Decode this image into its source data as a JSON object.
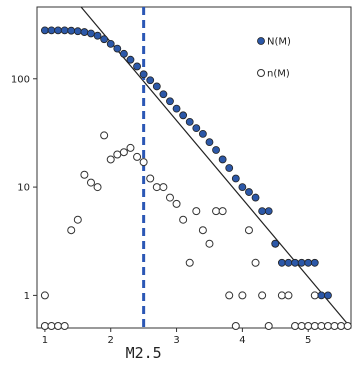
{
  "chart_data": {
    "type": "scatter",
    "title": "",
    "xlabel": "",
    "ylabel": "",
    "xlim": [
      0.88,
      5.65
    ],
    "ylim": [
      0.5,
      460
    ],
    "y_scale": "log",
    "x_ticks": [
      "1",
      "2",
      "3",
      "4",
      "5"
    ],
    "y_ticks": [
      "1",
      "10",
      "100"
    ],
    "legend_position": "top-right",
    "grid": false,
    "colors": {
      "cumulative": "#2c58a8",
      "incremental": "#ffffff",
      "line": "#222222",
      "marker_line": "#2b57b5"
    },
    "series": [
      {
        "name": "N(M)",
        "marker": "filled-circle",
        "points": [
          [
            1.0,
            280
          ],
          [
            1.1,
            280
          ],
          [
            1.2,
            280
          ],
          [
            1.3,
            280
          ],
          [
            1.4,
            278
          ],
          [
            1.5,
            275
          ],
          [
            1.6,
            270
          ],
          [
            1.7,
            262
          ],
          [
            1.8,
            250
          ],
          [
            1.9,
            232
          ],
          [
            2.0,
            210
          ],
          [
            2.1,
            190
          ],
          [
            2.2,
            170
          ],
          [
            2.3,
            150
          ],
          [
            2.4,
            130
          ],
          [
            2.5,
            110
          ],
          [
            2.6,
            97
          ],
          [
            2.7,
            85
          ],
          [
            2.8,
            72
          ],
          [
            2.9,
            62
          ],
          [
            3.0,
            53
          ],
          [
            3.1,
            46
          ],
          [
            3.2,
            40
          ],
          [
            3.3,
            35
          ],
          [
            3.4,
            31
          ],
          [
            3.5,
            26
          ],
          [
            3.6,
            22
          ],
          [
            3.7,
            18
          ],
          [
            3.8,
            15
          ],
          [
            3.9,
            12
          ],
          [
            4.0,
            10
          ],
          [
            4.1,
            9
          ],
          [
            4.2,
            8
          ],
          [
            4.3,
            6
          ],
          [
            4.4,
            6
          ],
          [
            4.5,
            3
          ],
          [
            4.6,
            2
          ],
          [
            4.7,
            2
          ],
          [
            4.8,
            2
          ],
          [
            4.9,
            2
          ],
          [
            5.0,
            2
          ],
          [
            5.1,
            2
          ],
          [
            5.2,
            1
          ],
          [
            5.3,
            1
          ]
        ]
      },
      {
        "name": "n(M)",
        "marker": "open-circle",
        "points": [
          [
            1.0,
            1
          ],
          [
            1.4,
            4
          ],
          [
            1.5,
            5
          ],
          [
            1.6,
            13
          ],
          [
            1.7,
            11
          ],
          [
            1.8,
            10
          ],
          [
            1.9,
            30
          ],
          [
            2.0,
            18
          ],
          [
            2.1,
            20
          ],
          [
            2.2,
            21
          ],
          [
            2.3,
            23
          ],
          [
            2.4,
            19
          ],
          [
            2.5,
            17
          ],
          [
            2.6,
            12
          ],
          [
            2.7,
            10
          ],
          [
            2.8,
            10
          ],
          [
            2.9,
            8
          ],
          [
            3.0,
            7
          ],
          [
            3.1,
            5
          ],
          [
            3.2,
            2
          ],
          [
            3.3,
            6
          ],
          [
            3.4,
            4
          ],
          [
            3.5,
            3
          ],
          [
            3.6,
            6
          ],
          [
            3.7,
            6
          ],
          [
            3.8,
            1
          ],
          [
            4.0,
            1
          ],
          [
            4.1,
            4
          ],
          [
            4.2,
            2
          ],
          [
            4.3,
            1
          ],
          [
            4.5,
            3
          ],
          [
            4.6,
            1
          ],
          [
            4.7,
            1
          ],
          [
            5.1,
            1
          ]
        ],
        "zero_row_x": [
          1.0,
          1.1,
          1.2,
          1.3,
          3.9,
          4.4,
          4.8,
          4.9,
          5.0,
          5.1,
          5.2,
          5.3,
          5.4,
          5.5,
          5.6,
          5.8,
          5.9
        ]
      }
    ],
    "fit_line": {
      "x1": 1.55,
      "y1": 460,
      "x2": 5.65,
      "y2": 0.5
    },
    "marker_line": {
      "x": 2.5,
      "label": "M2.5"
    }
  }
}
